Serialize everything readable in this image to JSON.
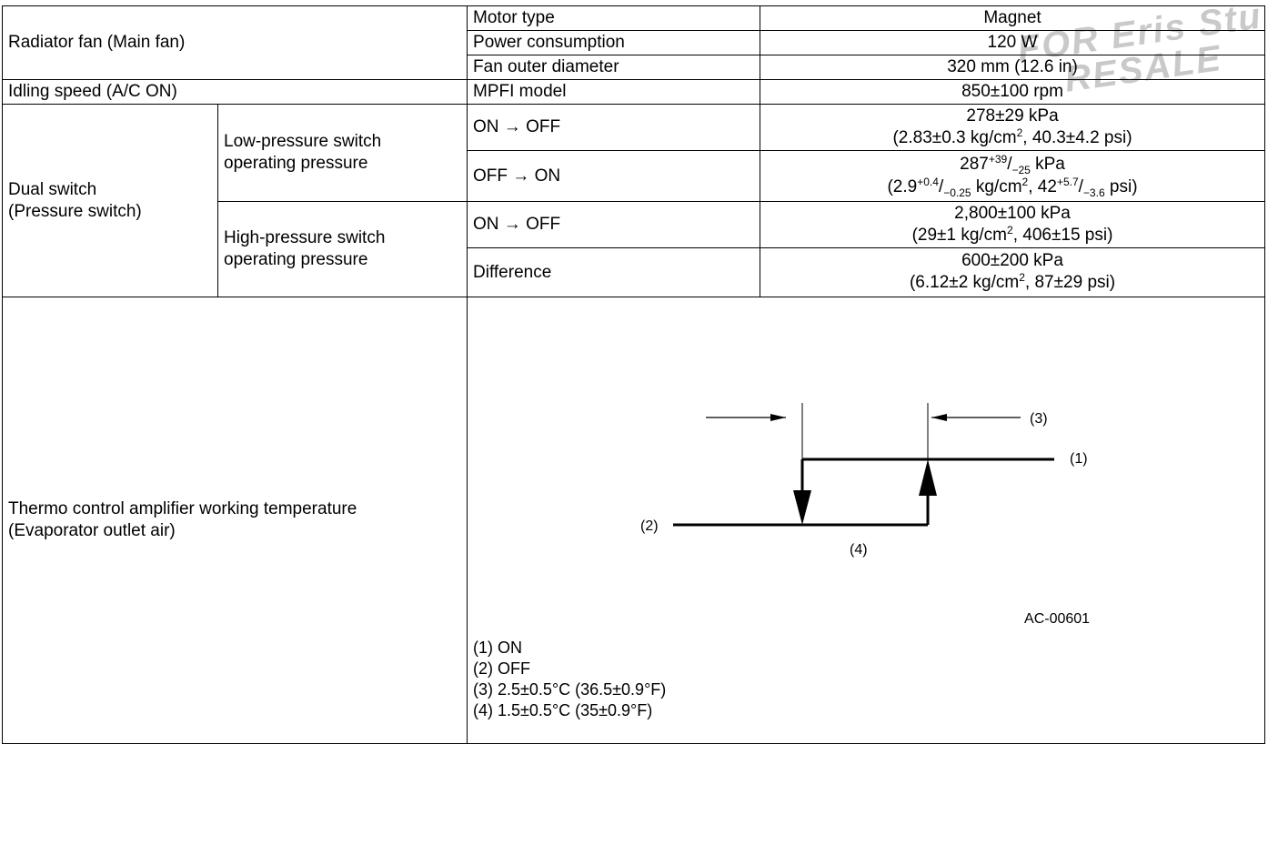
{
  "watermark": {
    "line1": "FOR  Eris Stu",
    "line2": "RESALE"
  },
  "radiator": {
    "label": "Radiator fan (Main fan)",
    "rows": [
      {
        "name": "Motor type",
        "value": "Magnet"
      },
      {
        "name": "Power consumption",
        "value": "120 W"
      },
      {
        "name": "Fan outer diameter",
        "value": "320 mm (12.6 in)"
      }
    ]
  },
  "idling": {
    "label": "Idling speed (A/C ON)",
    "name": "MPFI model",
    "value": "850±100 rpm"
  },
  "dual_switch": {
    "label_line1": "Dual switch",
    "label_line2": "(Pressure switch)",
    "low": {
      "label_line1": "Low-pressure switch",
      "label_line2": "operating pressure",
      "on_off": {
        "name": "ON → OFF",
        "line1": "278±29 kPa",
        "line2a": "(2.83±0.3 kg/cm",
        "sup": "2",
        "line2b": ", 40.3±4.2 psi)"
      },
      "off_on": {
        "name": "OFF → ON",
        "l1_main": "287",
        "l1_sup": "+39",
        "l1_mid": "/",
        "l1_sub": "−25",
        "l1_unit": " kPa",
        "l2_a": "(2.9",
        "l2_sup1": "+0.4",
        "l2_b": "/",
        "l2_sub1": "−0.25",
        "l2_c": " kg/cm",
        "l2_sup2": "2",
        "l2_d": ", 42",
        "l2_sup3": "+5.7",
        "l2_e": "/",
        "l2_sub2": "−3.6",
        "l2_f": " psi)"
      }
    },
    "high": {
      "label_line1": "High-pressure switch",
      "label_line2": "operating pressure",
      "on_off": {
        "name": "ON → OFF",
        "line1": "2,800±100 kPa",
        "line2a": "(29±1 kg/cm",
        "sup": "2",
        "line2b": ", 406±15 psi)"
      },
      "difference": {
        "name": "Difference",
        "line1": "600±200 kPa",
        "line2a": "(6.12±2 kg/cm",
        "sup": "2",
        "line2b": ", 87±29 psi)"
      }
    }
  },
  "thermo": {
    "label_line1": "Thermo control amplifier working temperature",
    "label_line2": "(Evaporator outlet air)",
    "diagram": {
      "label_1": "(1)",
      "label_2": "(2)",
      "label_3": "(3)",
      "label_4": "(4)",
      "code": "AC-00601"
    },
    "legend": [
      "(1) ON",
      "(2) OFF",
      "(3) 2.5±0.5°C (36.5±0.9°F)",
      "(4) 1.5±0.5°C (35±0.9°F)"
    ]
  }
}
